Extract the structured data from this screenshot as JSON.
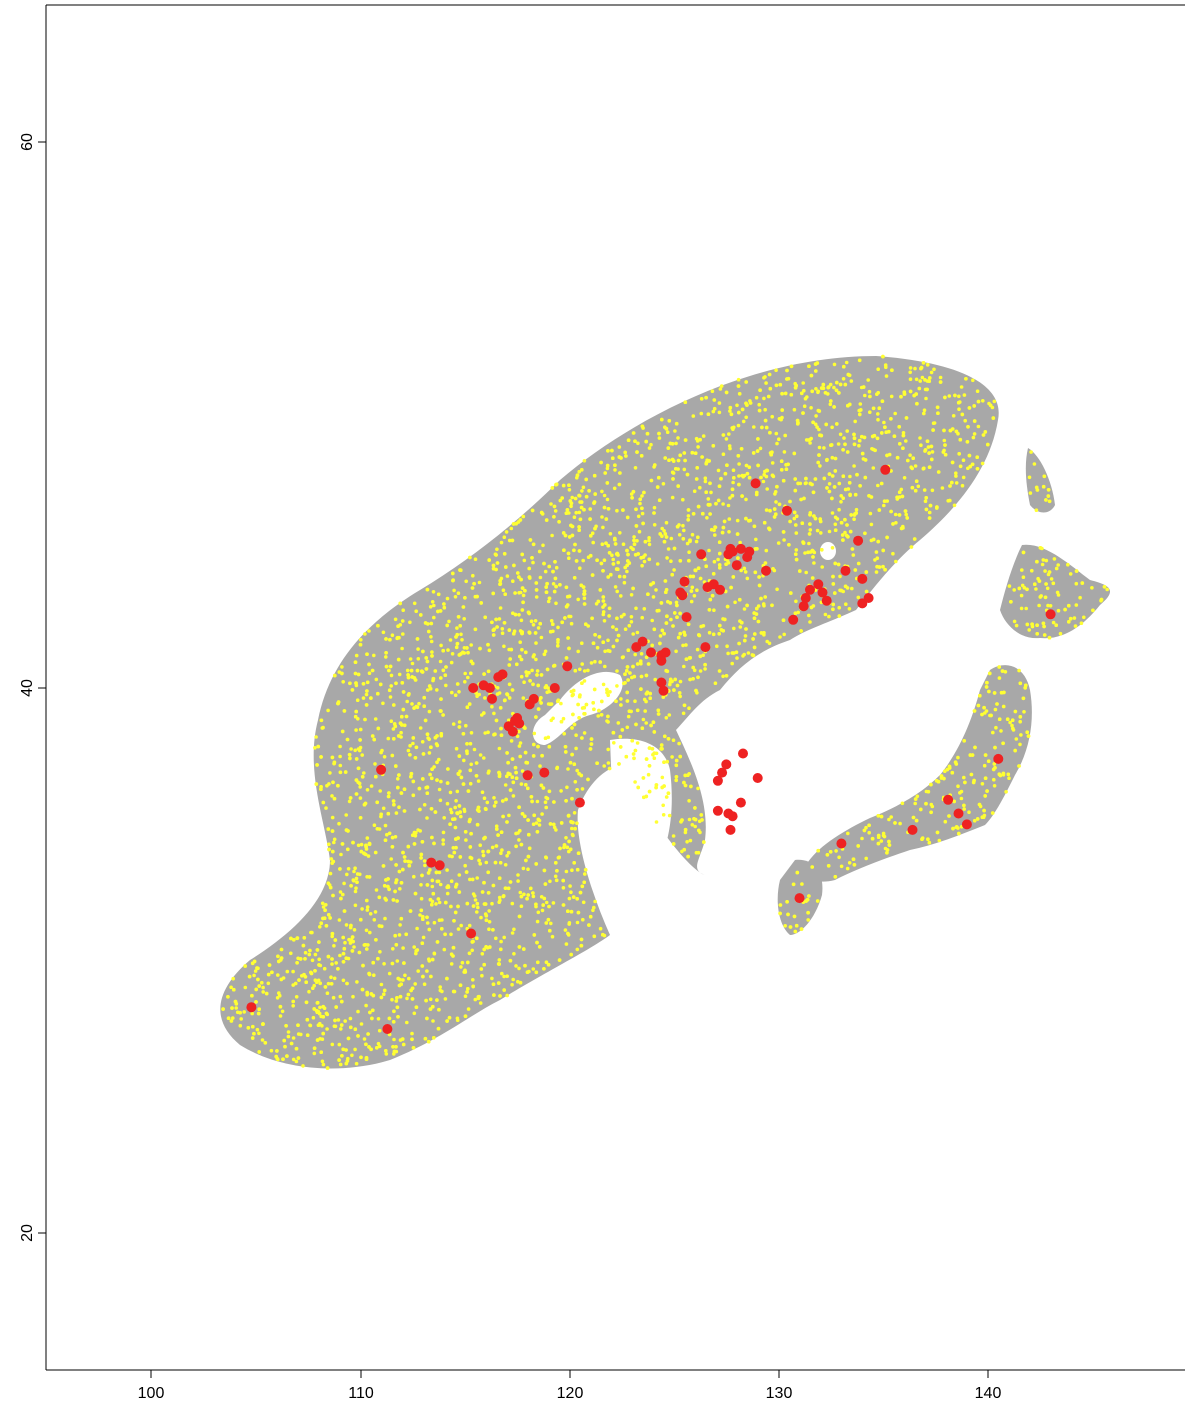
{
  "chart_data": {
    "type": "scatter",
    "title": "",
    "xlabel": "",
    "ylabel": "",
    "xlim": [
      95,
      150
    ],
    "ylim": [
      15,
      65
    ],
    "x_ticks": [
      "100",
      "110",
      "120",
      "130",
      "140"
    ],
    "y_ticks": [
      "20",
      "40",
      "60"
    ],
    "colors": {
      "background_region": "#a8a8a8",
      "background_points": "#ffff33",
      "occurrence_points": "#ee2222"
    },
    "series": [
      {
        "values": [
          [
            104.8,
            28.3
          ],
          [
            111.3,
            27.5
          ],
          [
            111.0,
            37.0
          ],
          [
            113.4,
            33.6
          ],
          [
            113.8,
            33.5
          ],
          [
            115.3,
            31.0
          ],
          [
            115.4,
            40.0
          ],
          [
            115.9,
            40.1
          ],
          [
            116.2,
            40.0
          ],
          [
            116.3,
            39.6
          ],
          [
            116.6,
            40.4
          ],
          [
            116.8,
            40.5
          ],
          [
            117.1,
            38.6
          ],
          [
            117.3,
            38.4
          ],
          [
            117.4,
            38.8
          ],
          [
            117.6,
            38.7
          ],
          [
            117.5,
            38.9
          ],
          [
            118.0,
            36.8
          ],
          [
            118.1,
            39.4
          ],
          [
            118.3,
            39.6
          ],
          [
            118.8,
            36.9
          ],
          [
            119.3,
            40.0
          ],
          [
            119.9,
            40.8
          ],
          [
            120.5,
            35.8
          ],
          [
            123.2,
            41.5
          ],
          [
            123.5,
            41.7
          ],
          [
            123.9,
            41.3
          ],
          [
            124.4,
            41.0
          ],
          [
            124.4,
            41.2
          ],
          [
            124.4,
            40.2
          ],
          [
            124.5,
            39.9
          ],
          [
            124.6,
            41.3
          ],
          [
            125.3,
            43.5
          ],
          [
            125.4,
            43.4
          ],
          [
            125.5,
            43.9
          ],
          [
            125.6,
            42.6
          ],
          [
            126.3,
            44.9
          ],
          [
            126.5,
            41.5
          ],
          [
            126.6,
            43.7
          ],
          [
            126.9,
            43.8
          ],
          [
            127.2,
            43.6
          ],
          [
            127.6,
            44.9
          ],
          [
            127.7,
            45.1
          ],
          [
            127.8,
            45.0
          ],
          [
            128.0,
            44.5
          ],
          [
            128.2,
            45.1
          ],
          [
            128.5,
            44.8
          ],
          [
            128.6,
            45.0
          ],
          [
            128.9,
            47.5
          ],
          [
            129.4,
            44.3
          ],
          [
            130.4,
            46.5
          ],
          [
            130.7,
            42.5
          ],
          [
            131.2,
            43.0
          ],
          [
            131.3,
            43.3
          ],
          [
            131.5,
            43.6
          ],
          [
            131.9,
            43.8
          ],
          [
            132.1,
            43.5
          ],
          [
            132.3,
            43.2
          ],
          [
            133.2,
            44.3
          ],
          [
            133.8,
            45.4
          ],
          [
            134.0,
            43.1
          ],
          [
            134.3,
            43.3
          ],
          [
            134.0,
            44.0
          ],
          [
            135.1,
            48.0
          ],
          [
            128.3,
            37.6
          ],
          [
            127.5,
            37.2
          ],
          [
            127.3,
            36.9
          ],
          [
            127.1,
            36.6
          ],
          [
            129.0,
            36.7
          ],
          [
            128.2,
            35.8
          ],
          [
            127.6,
            35.4
          ],
          [
            127.8,
            35.3
          ],
          [
            127.7,
            34.8
          ],
          [
            127.1,
            35.5
          ],
          [
            133.0,
            34.3
          ],
          [
            131.0,
            32.3
          ],
          [
            136.4,
            34.8
          ],
          [
            138.1,
            35.9
          ],
          [
            138.6,
            35.4
          ],
          [
            139.0,
            35.0
          ],
          [
            140.5,
            37.4
          ],
          [
            143.0,
            42.7
          ]
        ]
      }
    ]
  }
}
